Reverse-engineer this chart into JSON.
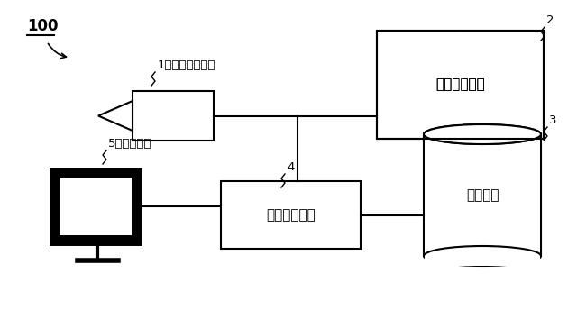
{
  "bg_color": "#ffffff",
  "line_color": "#000000",
  "label_100": "100",
  "label_1": "1：映像入力装置",
  "label_2": "2",
  "label_3": "3",
  "label_4": "4",
  "label_5": "5：表示装置",
  "box2_label": "映像解析装置",
  "box4_label": "映像処理装置",
  "cylinder_label": "記憶装置",
  "figsize": [
    6.4,
    3.64
  ],
  "dpi": 100
}
